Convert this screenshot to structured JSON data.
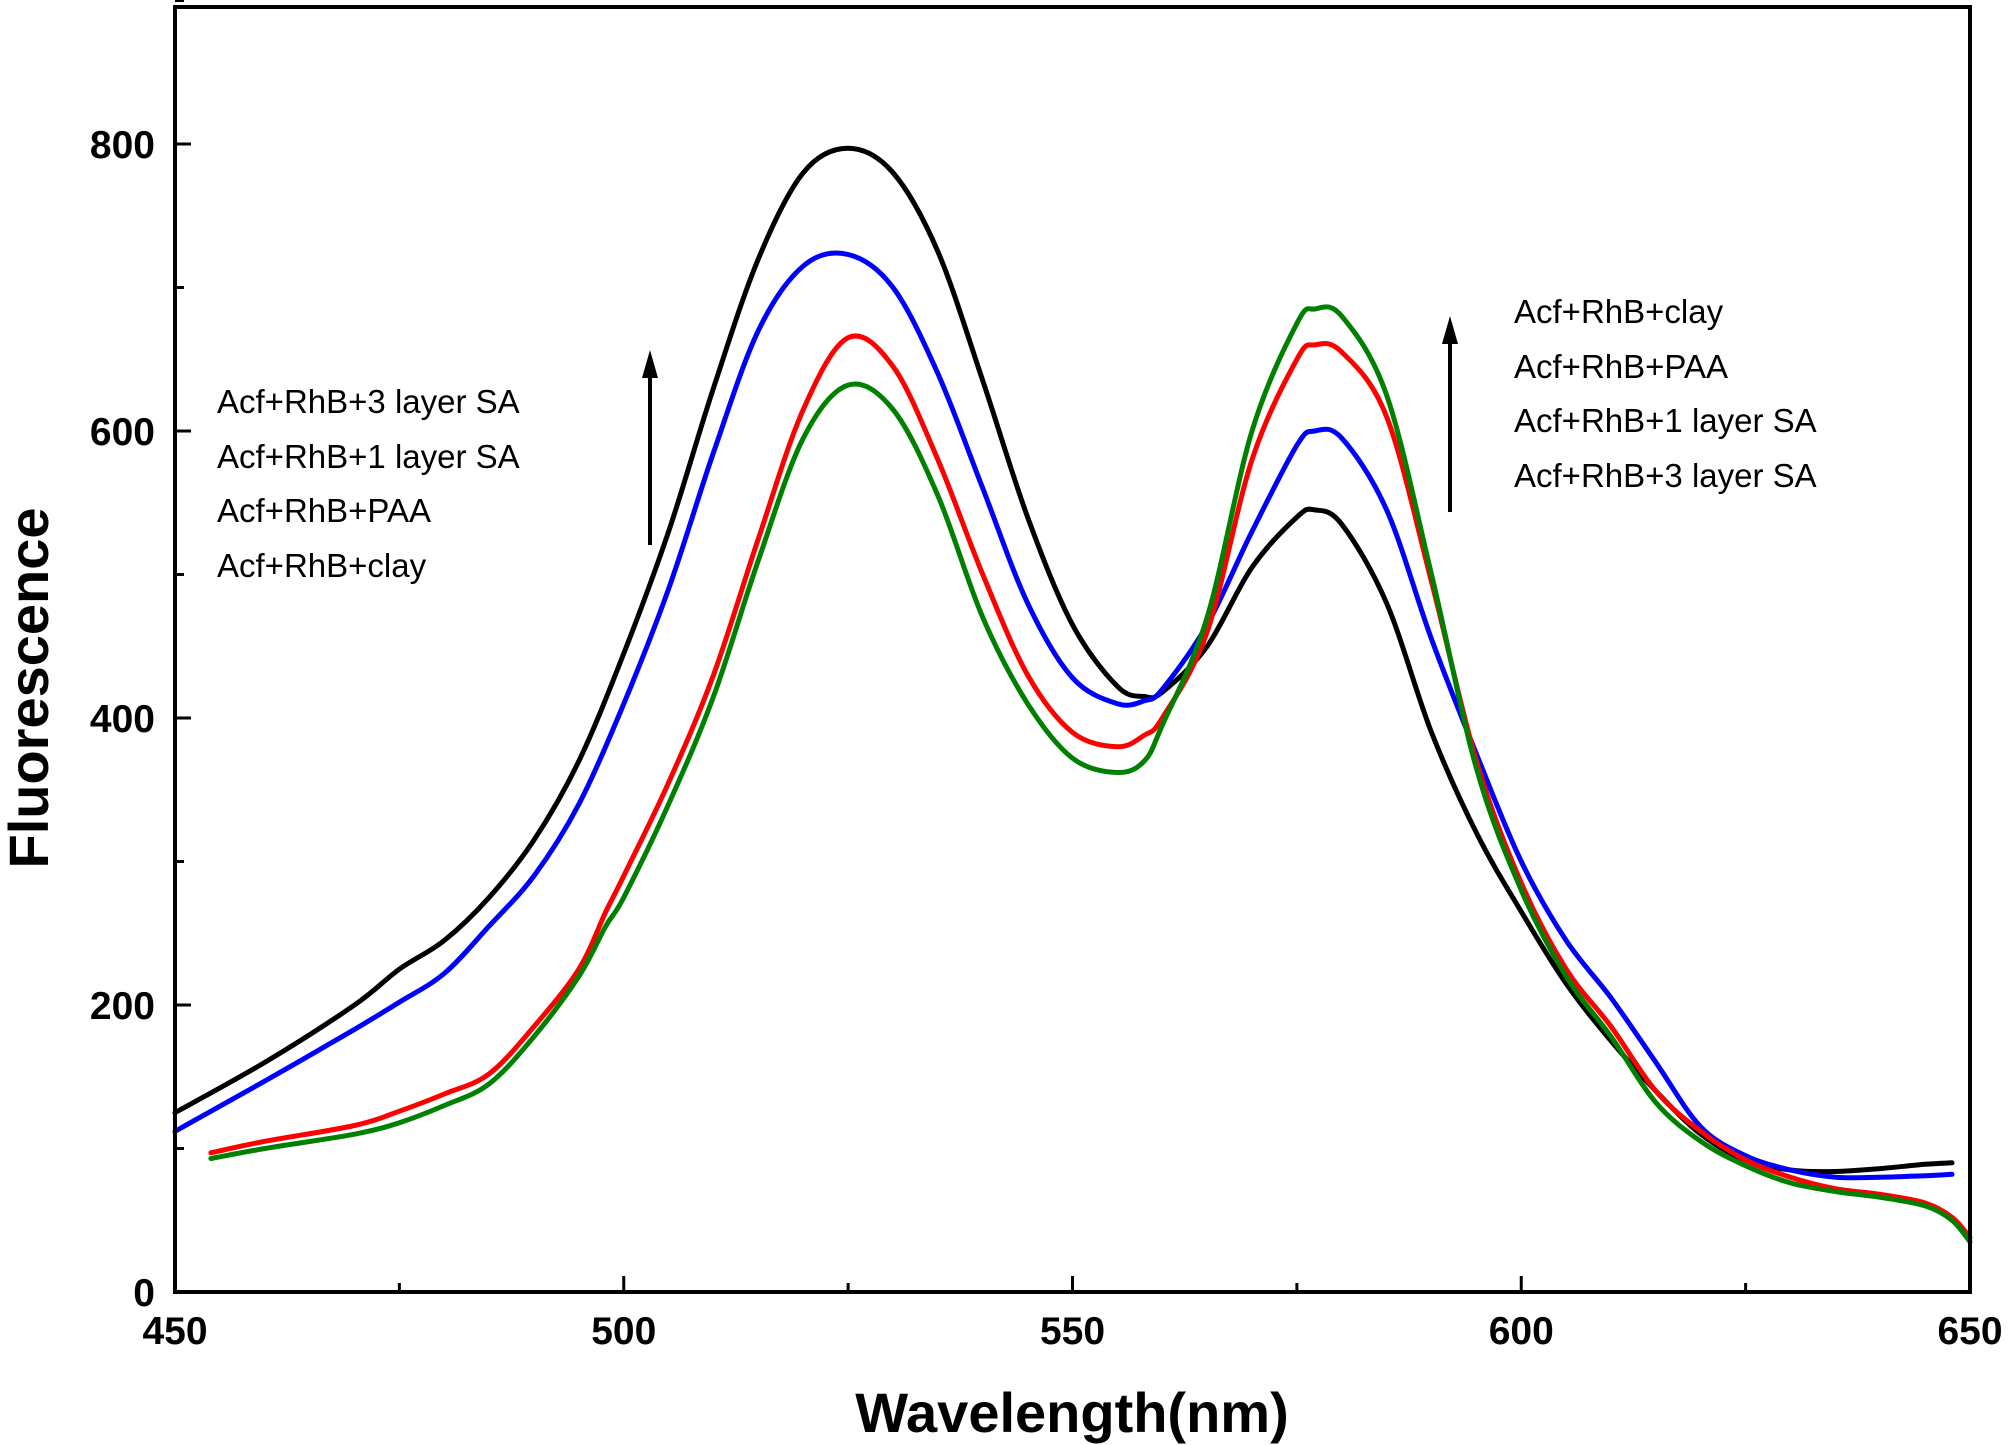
{
  "chart_data": {
    "type": "line",
    "title": "",
    "xlabel": "Wavelength(nm)",
    "ylabel": "Fluorescence",
    "xlim": [
      450,
      650
    ],
    "ylim": [
      0,
      900
    ],
    "x_ticks": [
      "450",
      "500",
      "550",
      "600",
      "650"
    ],
    "y_ticks": [
      "0",
      "200",
      "400",
      "600",
      "800"
    ],
    "grid": false,
    "series": [
      {
        "name": "Acf+RhB+3 layer SA",
        "color": "#000000",
        "x": [
          450,
          460,
          470,
          475,
          480,
          485,
          490,
          495,
          500,
          505,
          510,
          515,
          520,
          525,
          530,
          535,
          540,
          545,
          550,
          555,
          558,
          560,
          565,
          570,
          575,
          577,
          580,
          585,
          590,
          595,
          600,
          605,
          610,
          615,
          620,
          625,
          630,
          635,
          640,
          645,
          648
        ],
        "y": [
          125,
          160,
          200,
          225,
          245,
          275,
          315,
          370,
          445,
          530,
          630,
          720,
          780,
          797,
          780,
          725,
          635,
          540,
          465,
          422,
          415,
          418,
          450,
          505,
          540,
          545,
          535,
          480,
          390,
          320,
          265,
          215,
          175,
          140,
          110,
          92,
          85,
          84,
          86,
          89,
          90
        ]
      },
      {
        "name": "Acf+RhB+1 layer SA",
        "color": "#0000ff",
        "x": [
          450,
          460,
          470,
          475,
          480,
          485,
          490,
          495,
          500,
          505,
          510,
          515,
          520,
          525,
          530,
          535,
          540,
          545,
          550,
          555,
          558,
          560,
          565,
          570,
          575,
          577,
          580,
          585,
          590,
          595,
          600,
          605,
          610,
          615,
          620,
          625,
          630,
          635,
          640,
          645,
          648
        ],
        "y": [
          112,
          147,
          183,
          202,
          222,
          255,
          290,
          340,
          410,
          490,
          585,
          670,
          715,
          723,
          700,
          640,
          560,
          480,
          428,
          410,
          412,
          420,
          465,
          530,
          590,
          600,
          595,
          545,
          455,
          375,
          300,
          245,
          205,
          160,
          115,
          95,
          85,
          80,
          80,
          81,
          82
        ]
      },
      {
        "name": "Acf+RhB+PAA",
        "color": "#ff0000",
        "x": [
          454,
          460,
          470,
          475,
          480,
          485,
          490,
          495,
          498,
          500,
          505,
          510,
          515,
          520,
          525,
          530,
          535,
          540,
          545,
          550,
          555,
          558,
          560,
          565,
          570,
          575,
          577,
          580,
          585,
          590,
          595,
          600,
          605,
          610,
          615,
          620,
          625,
          630,
          635,
          640,
          645,
          648,
          650
        ],
        "y": [
          97,
          105,
          116,
          126,
          138,
          152,
          185,
          225,
          265,
          290,
          355,
          430,
          525,
          615,
          665,
          645,
          580,
          500,
          430,
          390,
          380,
          388,
          400,
          460,
          580,
          650,
          660,
          655,
          610,
          495,
          370,
          285,
          225,
          185,
          140,
          112,
          92,
          80,
          72,
          68,
          62,
          52,
          38
        ]
      },
      {
        "name": "Acf+RhB+clay",
        "color": "#008000",
        "x": [
          454,
          460,
          470,
          475,
          480,
          485,
          490,
          495,
          498,
          500,
          505,
          510,
          515,
          520,
          525,
          530,
          535,
          540,
          545,
          550,
          555,
          558,
          560,
          565,
          570,
          575,
          577,
          580,
          585,
          590,
          595,
          600,
          605,
          610,
          615,
          620,
          625,
          630,
          635,
          640,
          645,
          648,
          650
        ],
        "y": [
          93,
          100,
          110,
          118,
          130,
          145,
          178,
          220,
          255,
          275,
          340,
          415,
          510,
          595,
          632,
          615,
          555,
          470,
          410,
          372,
          362,
          370,
          395,
          470,
          600,
          675,
          685,
          680,
          625,
          500,
          365,
          280,
          220,
          178,
          132,
          105,
          88,
          76,
          70,
          66,
          60,
          50,
          35
        ]
      }
    ],
    "annotations": {
      "left_legend": [
        "Acf+RhB+3 layer SA",
        "Acf+RhB+1 layer SA",
        "Acf+RhB+PAA",
        "Acf+RhB+clay"
      ],
      "right_legend": [
        "Acf+RhB+clay",
        "Acf+RhB+PAA",
        "Acf+RhB+1 layer SA",
        "Acf+RhB+3 layer SA"
      ],
      "arrow_direction": "up"
    }
  }
}
